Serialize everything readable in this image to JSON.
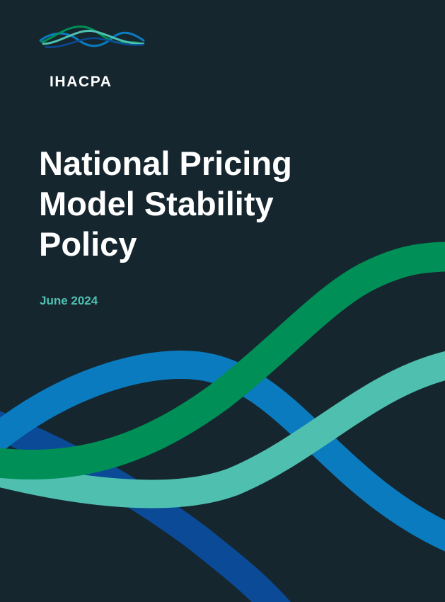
{
  "brand": {
    "name": "IHACPA",
    "logo_icon": "wave-lines-logo-mark",
    "colors": {
      "green": "#008f56",
      "teal": "#4fc0b0",
      "blue": "#0a7bbf",
      "navy": "#0b4a96"
    }
  },
  "document": {
    "title_lines": [
      "National Pricing",
      "Model Stability",
      "Policy"
    ],
    "date": "June 2024"
  },
  "theme": {
    "background": "#15262e",
    "title_color": "#ffffff",
    "date_color": "#4fc0b0"
  }
}
